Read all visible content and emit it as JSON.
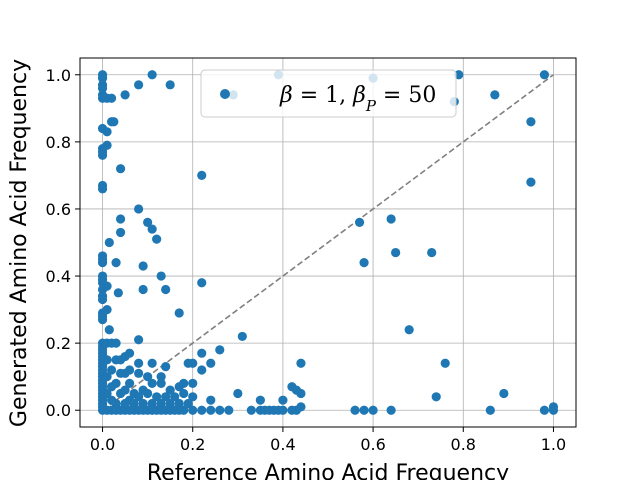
{
  "chart_data": {
    "type": "scatter",
    "xlabel": "Reference Amino Acid Frequency",
    "ylabel": "Generated Amino Acid Frequency",
    "xlim": [
      -0.05,
      1.05
    ],
    "ylim": [
      -0.05,
      1.05
    ],
    "x_ticks": [
      0.0,
      0.2,
      0.4,
      0.6,
      0.8,
      1.0
    ],
    "y_ticks": [
      0.0,
      0.2,
      0.4,
      0.6,
      0.8,
      1.0
    ],
    "x_tick_labels": [
      "0.0",
      "0.2",
      "0.4",
      "0.6",
      "0.8",
      "1.0"
    ],
    "y_tick_labels": [
      "0.0",
      "0.2",
      "0.4",
      "0.6",
      "0.8",
      "1.0"
    ],
    "grid": true,
    "legend": {
      "label": "β = 1, β_P = 50",
      "placement": "top-right"
    },
    "marker_color": "#1f77b4",
    "reference_line": {
      "style": "dashed",
      "color": "#808080",
      "from": [
        0,
        0
      ],
      "to": [
        1,
        1
      ]
    },
    "series": [
      {
        "name": "β = 1, β_P = 50",
        "points": [
          [
            0.0,
            1.0
          ],
          [
            0.0,
            0.99
          ],
          [
            0.0,
            0.97
          ],
          [
            0.0,
            0.96
          ],
          [
            0.0,
            0.94
          ],
          [
            0.0,
            0.93
          ],
          [
            0.0,
            0.84
          ],
          [
            0.0,
            0.78
          ],
          [
            0.0,
            0.77
          ],
          [
            0.0,
            0.76
          ],
          [
            0.0,
            0.67
          ],
          [
            0.0,
            0.66
          ],
          [
            0.0,
            0.46
          ],
          [
            0.0,
            0.45
          ],
          [
            0.0,
            0.44
          ],
          [
            0.0,
            0.4
          ],
          [
            0.0,
            0.39
          ],
          [
            0.0,
            0.38
          ],
          [
            0.0,
            0.36
          ],
          [
            0.0,
            0.34
          ],
          [
            0.0,
            0.33
          ],
          [
            0.0,
            0.29
          ],
          [
            0.0,
            0.28
          ],
          [
            0.0,
            0.27
          ],
          [
            0.0,
            0.2
          ],
          [
            0.0,
            0.19
          ],
          [
            0.0,
            0.18
          ],
          [
            0.0,
            0.17
          ],
          [
            0.0,
            0.16
          ],
          [
            0.0,
            0.15
          ],
          [
            0.0,
            0.14
          ],
          [
            0.0,
            0.13
          ],
          [
            0.0,
            0.12
          ],
          [
            0.0,
            0.11
          ],
          [
            0.0,
            0.1
          ],
          [
            0.0,
            0.09
          ],
          [
            0.0,
            0.08
          ],
          [
            0.0,
            0.07
          ],
          [
            0.0,
            0.06
          ],
          [
            0.0,
            0.05
          ],
          [
            0.0,
            0.04
          ],
          [
            0.0,
            0.03
          ],
          [
            0.0,
            0.02
          ],
          [
            0.0,
            0.01
          ],
          [
            0.0,
            0.0
          ],
          [
            0.01,
            0.93
          ],
          [
            0.01,
            0.83
          ],
          [
            0.01,
            0.79
          ],
          [
            0.015,
            0.5
          ],
          [
            0.01,
            0.37
          ],
          [
            0.01,
            0.3
          ],
          [
            0.015,
            0.24
          ],
          [
            0.01,
            0.2
          ],
          [
            0.01,
            0.15
          ],
          [
            0.01,
            0.1
          ],
          [
            0.01,
            0.05
          ],
          [
            0.01,
            0.0
          ],
          [
            0.02,
            0.93
          ],
          [
            0.02,
            0.86
          ],
          [
            0.025,
            0.86
          ],
          [
            0.02,
            0.2
          ],
          [
            0.02,
            0.12
          ],
          [
            0.02,
            0.07
          ],
          [
            0.02,
            0.03
          ],
          [
            0.02,
            0.0
          ],
          [
            0.03,
            0.44
          ],
          [
            0.03,
            0.2
          ],
          [
            0.03,
            0.15
          ],
          [
            0.03,
            0.08
          ],
          [
            0.03,
            0.02
          ],
          [
            0.03,
            0.0
          ],
          [
            0.04,
            0.72
          ],
          [
            0.04,
            0.57
          ],
          [
            0.04,
            0.53
          ],
          [
            0.035,
            0.35
          ],
          [
            0.04,
            0.15
          ],
          [
            0.04,
            0.11
          ],
          [
            0.04,
            0.05
          ],
          [
            0.04,
            0.0
          ],
          [
            0.05,
            0.94
          ],
          [
            0.05,
            0.16
          ],
          [
            0.05,
            0.11
          ],
          [
            0.05,
            0.06
          ],
          [
            0.05,
            0.02
          ],
          [
            0.05,
            0.0
          ],
          [
            0.06,
            0.17
          ],
          [
            0.06,
            0.12
          ],
          [
            0.06,
            0.08
          ],
          [
            0.06,
            0.03
          ],
          [
            0.06,
            0.0
          ],
          [
            0.07,
            0.05
          ],
          [
            0.07,
            0.02
          ],
          [
            0.07,
            0.0
          ],
          [
            0.08,
            0.97
          ],
          [
            0.08,
            0.6
          ],
          [
            0.08,
            0.21
          ],
          [
            0.08,
            0.14
          ],
          [
            0.08,
            0.11
          ],
          [
            0.08,
            0.04
          ],
          [
            0.08,
            0.0
          ],
          [
            0.09,
            0.43
          ],
          [
            0.09,
            0.36
          ],
          [
            0.09,
            0.06
          ],
          [
            0.09,
            0.02
          ],
          [
            0.09,
            0.0
          ],
          [
            0.1,
            0.56
          ],
          [
            0.1,
            0.1
          ],
          [
            0.1,
            0.05
          ],
          [
            0.1,
            0.0
          ],
          [
            0.11,
            1.0
          ],
          [
            0.11,
            0.54
          ],
          [
            0.11,
            0.14
          ],
          [
            0.11,
            0.08
          ],
          [
            0.11,
            0.02
          ],
          [
            0.11,
            0.0
          ],
          [
            0.12,
            0.51
          ],
          [
            0.12,
            0.04
          ],
          [
            0.12,
            0.0
          ],
          [
            0.13,
            0.4
          ],
          [
            0.13,
            0.1
          ],
          [
            0.13,
            0.08
          ],
          [
            0.13,
            0.02
          ],
          [
            0.13,
            0.0
          ],
          [
            0.14,
            0.36
          ],
          [
            0.14,
            0.13
          ],
          [
            0.14,
            0.04
          ],
          [
            0.14,
            0.0
          ],
          [
            0.15,
            0.97
          ],
          [
            0.15,
            0.06
          ],
          [
            0.15,
            0.02
          ],
          [
            0.15,
            0.0
          ],
          [
            0.16,
            0.04
          ],
          [
            0.16,
            0.0
          ],
          [
            0.17,
            0.29
          ],
          [
            0.17,
            0.07
          ],
          [
            0.17,
            0.02
          ],
          [
            0.17,
            0.0
          ],
          [
            0.18,
            0.08
          ],
          [
            0.18,
            0.05
          ],
          [
            0.18,
            0.0
          ],
          [
            0.19,
            0.14
          ],
          [
            0.19,
            0.02
          ],
          [
            0.2,
            0.14
          ],
          [
            0.2,
            0.08
          ],
          [
            0.2,
            0.04
          ],
          [
            0.2,
            0.0
          ],
          [
            0.22,
            0.7
          ],
          [
            0.22,
            0.38
          ],
          [
            0.22,
            0.17
          ],
          [
            0.22,
            0.12
          ],
          [
            0.22,
            0.0
          ],
          [
            0.24,
            0.14
          ],
          [
            0.24,
            0.03
          ],
          [
            0.24,
            0.0
          ],
          [
            0.26,
            0.18
          ],
          [
            0.26,
            0.0
          ],
          [
            0.28,
            0.0
          ],
          [
            0.29,
            0.94
          ],
          [
            0.3,
            0.05
          ],
          [
            0.31,
            0.22
          ],
          [
            0.33,
            0.0
          ],
          [
            0.35,
            0.0
          ],
          [
            0.36,
            0.0
          ],
          [
            0.37,
            0.0
          ],
          [
            0.38,
            0.0
          ],
          [
            0.39,
            0.0
          ],
          [
            0.35,
            0.03
          ],
          [
            0.39,
            1.0
          ],
          [
            0.4,
            0.03
          ],
          [
            0.4,
            0.0
          ],
          [
            0.42,
            0.0
          ],
          [
            0.42,
            0.07
          ],
          [
            0.43,
            0.06
          ],
          [
            0.44,
            0.14
          ],
          [
            0.44,
            0.01
          ],
          [
            0.43,
            0.0
          ],
          [
            0.44,
            0.05
          ],
          [
            0.56,
            0.0
          ],
          [
            0.57,
            0.56
          ],
          [
            0.58,
            0.44
          ],
          [
            0.58,
            0.0
          ],
          [
            0.6,
            0.99
          ],
          [
            0.6,
            0.0
          ],
          [
            0.64,
            0.57
          ],
          [
            0.64,
            0.0
          ],
          [
            0.65,
            0.47
          ],
          [
            0.68,
            0.24
          ],
          [
            0.73,
            0.47
          ],
          [
            0.74,
            0.04
          ],
          [
            0.76,
            0.14
          ],
          [
            0.78,
            0.92
          ],
          [
            0.79,
            1.0
          ],
          [
            0.86,
            0.0
          ],
          [
            0.87,
            0.94
          ],
          [
            0.89,
            0.05
          ],
          [
            0.95,
            0.86
          ],
          [
            0.95,
            0.68
          ],
          [
            0.98,
            1.0
          ],
          [
            0.98,
            0.0
          ],
          [
            1.0,
            0.01
          ],
          [
            1.0,
            0.0
          ]
        ]
      }
    ]
  }
}
